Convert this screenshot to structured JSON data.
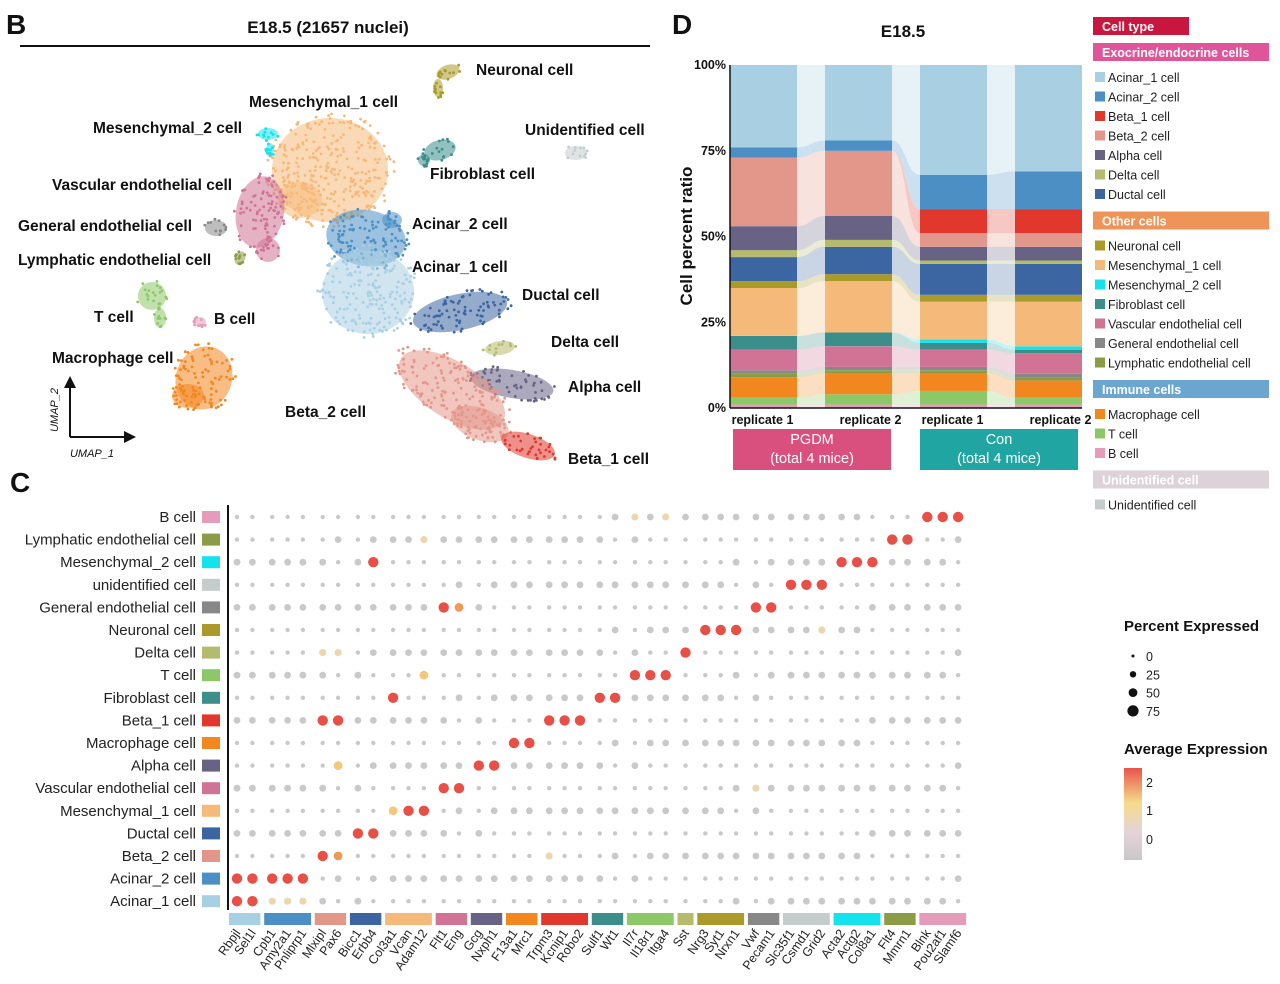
{
  "panel_labels": {
    "b": "B",
    "c": "C",
    "d": "D"
  },
  "colors": {
    "Acinar_1 cell": "#a9cfe3",
    "Acinar_2 cell": "#4b8fc4",
    "Beta_1 cell": "#e2372c",
    "Beta_2 cell": "#e3978a",
    "Alpha cell": "#686385",
    "Delta cell": "#b5bb6c",
    "Ductal cell": "#3c66a1",
    "Neuronal cell": "#a99a2a",
    "Mesenchymal_1 cell": "#f5b97a",
    "Mesenchymal_2 cell": "#14e3ee",
    "Fibroblast cell": "#3b8e8a",
    "Vascular endothelial cell": "#d07394",
    "General endothelial cell": "#888888",
    "Lymphatic endothelial cell": "#8c9b46",
    "Macrophage cell": "#f3871f",
    "T cell": "#8cc867",
    "B cell": "#e59cba",
    "unidentified cell": "#c4cccc",
    "Unidentified cell": "#c4cccc"
  },
  "chart_data": [
    {
      "panel": "B",
      "type": "scatter",
      "title": "E18.5 (21657 nuclei)",
      "xlabel": "UMAP_1",
      "ylabel": "UMAP_2",
      "clusters": [
        {
          "name": "Neuronal cell",
          "label": "Neuronal cell"
        },
        {
          "name": "Mesenchymal_1 cell",
          "label": "Mesenchymal_1 cell"
        },
        {
          "name": "Mesenchymal_2 cell",
          "label": "Mesenchymal_2 cell"
        },
        {
          "name": "Unidentified cell",
          "label": "Unidentified cell"
        },
        {
          "name": "Fibroblast cell",
          "label": "Fibroblast cell"
        },
        {
          "name": "Vascular endothelial cell",
          "label": "Vascular endothelial cell"
        },
        {
          "name": "General endothelial cell",
          "label": "General endothelial cell"
        },
        {
          "name": "Acinar_2 cell",
          "label": "Acinar_2 cell"
        },
        {
          "name": "Lymphatic endothelial cell",
          "label": "Lymphatic endothelial cell"
        },
        {
          "name": "Acinar_1 cell",
          "label": "Acinar_1 cell"
        },
        {
          "name": "Ductal cell",
          "label": "Ductal cell"
        },
        {
          "name": "T cell",
          "label": "T cell"
        },
        {
          "name": "B cell",
          "label": "B cell"
        },
        {
          "name": "Delta cell",
          "label": "Delta cell"
        },
        {
          "name": "Macrophage cell",
          "label": "Macrophage cell"
        },
        {
          "name": "Alpha cell",
          "label": "Alpha cell"
        },
        {
          "name": "Beta_2 cell",
          "label": "Beta_2 cell"
        },
        {
          "name": "Beta_1 cell",
          "label": "Beta_1 cell"
        }
      ]
    },
    {
      "panel": "C",
      "type": "dotplot",
      "rows": [
        "B cell",
        "Lymphatic endothelial cell",
        "Mesenchymal_2 cell",
        "unidentified cell",
        "General endothelial cell",
        "Neuronal cell",
        "Delta cell",
        "T cell",
        "Fibroblast cell",
        "Beta_1 cell",
        "Macrophage cell",
        "Alpha cell",
        "Vascular endothelial cell",
        "Mesenchymal_1 cell",
        "Ductal cell",
        "Beta_2 cell",
        "Acinar_2 cell",
        "Acinar_1 cell"
      ],
      "gene_groups": [
        {
          "cluster": "Acinar_1 cell",
          "genes": [
            "Rbpjl",
            "Sel1l"
          ]
        },
        {
          "cluster": "Acinar_2 cell",
          "genes": [
            "Cpb1",
            "Amy2a1",
            "Pnliprp1"
          ]
        },
        {
          "cluster": "Beta_2 cell",
          "genes": [
            "Mlxipl",
            "Pax6"
          ]
        },
        {
          "cluster": "Ductal cell",
          "genes": [
            "Bicc1",
            "Erbb4"
          ]
        },
        {
          "cluster": "Mesenchymal_1 cell",
          "genes": [
            "Col3a1",
            "Vcan",
            "Adam12"
          ]
        },
        {
          "cluster": "Vascular endothelial cell",
          "genes": [
            "Flt1",
            "Eng"
          ]
        },
        {
          "cluster": "Alpha cell",
          "genes": [
            "Gcg",
            "Nxph1"
          ]
        },
        {
          "cluster": "Macrophage cell",
          "genes": [
            "F13a1",
            "Mrc1"
          ]
        },
        {
          "cluster": "Beta_1 cell",
          "genes": [
            "Trpm3",
            "Kcnip1",
            "Robo2"
          ]
        },
        {
          "cluster": "Fibroblast cell",
          "genes": [
            "Sulf1",
            "Wt1"
          ]
        },
        {
          "cluster": "T cell",
          "genes": [
            "Il7r",
            "Il18r1",
            "Itga4"
          ]
        },
        {
          "cluster": "Delta cell",
          "genes": [
            "Sst"
          ]
        },
        {
          "cluster": "Neuronal cell",
          "genes": [
            "Nrg3",
            "Syt1",
            "Nrxn1"
          ]
        },
        {
          "cluster": "General endothelial cell",
          "genes": [
            "Vwf",
            "Pecam1"
          ]
        },
        {
          "cluster": "unidentified cell",
          "genes": [
            "Slc35f1",
            "Csmd1",
            "Grid2"
          ]
        },
        {
          "cluster": "Mesenchymal_2 cell",
          "genes": [
            "Acta2",
            "Actg2",
            "Col8a1"
          ]
        },
        {
          "cluster": "Lymphatic endothelial cell",
          "genes": [
            "Flt4",
            "Mmrn1"
          ]
        },
        {
          "cluster": "B cell",
          "genes": [
            "Blnk",
            "Pou2af1",
            "Slamf6"
          ]
        }
      ],
      "highlights": [
        {
          "row": "Acinar_1 cell",
          "gene": "Rbpjl",
          "level": 2
        },
        {
          "row": "Acinar_1 cell",
          "gene": "Sel1l",
          "level": 2
        },
        {
          "row": "Acinar_1 cell",
          "gene": "Cpb1",
          "level": 1
        },
        {
          "row": "Acinar_1 cell",
          "gene": "Amy2a1",
          "level": 1
        },
        {
          "row": "Acinar_1 cell",
          "gene": "Pnliprp1",
          "level": 1
        },
        {
          "row": "Acinar_2 cell",
          "gene": "Rbpjl",
          "level": 2
        },
        {
          "row": "Acinar_2 cell",
          "gene": "Sel1l",
          "level": 2
        },
        {
          "row": "Acinar_2 cell",
          "gene": "Cpb1",
          "level": 2
        },
        {
          "row": "Acinar_2 cell",
          "gene": "Amy2a1",
          "level": 2
        },
        {
          "row": "Acinar_2 cell",
          "gene": "Pnliprp1",
          "level": 2
        },
        {
          "row": "Beta_2 cell",
          "gene": "Mlxipl",
          "level": 2
        },
        {
          "row": "Beta_2 cell",
          "gene": "Pax6",
          "level": 1.5
        },
        {
          "row": "Beta_2 cell",
          "gene": "Trpm3",
          "level": 1
        },
        {
          "row": "Ductal cell",
          "gene": "Bicc1",
          "level": 2
        },
        {
          "row": "Ductal cell",
          "gene": "Erbb4",
          "level": 2
        },
        {
          "row": "Mesenchymal_1 cell",
          "gene": "Col3a1",
          "level": 1.3
        },
        {
          "row": "Mesenchymal_1 cell",
          "gene": "Vcan",
          "level": 2
        },
        {
          "row": "Mesenchymal_1 cell",
          "gene": "Adam12",
          "level": 2
        },
        {
          "row": "Vascular endothelial cell",
          "gene": "Flt1",
          "level": 2
        },
        {
          "row": "Vascular endothelial cell",
          "gene": "Eng",
          "level": 2
        },
        {
          "row": "Vascular endothelial cell",
          "gene": "Vwf",
          "level": 1
        },
        {
          "row": "Alpha cell",
          "gene": "Gcg",
          "level": 2
        },
        {
          "row": "Alpha cell",
          "gene": "Nxph1",
          "level": 2
        },
        {
          "row": "Alpha cell",
          "gene": "Pax6",
          "level": 1.3
        },
        {
          "row": "Macrophage cell",
          "gene": "F13a1",
          "level": 2
        },
        {
          "row": "Macrophage cell",
          "gene": "Mrc1",
          "level": 2
        },
        {
          "row": "Beta_1 cell",
          "gene": "Trpm3",
          "level": 2
        },
        {
          "row": "Beta_1 cell",
          "gene": "Kcnip1",
          "level": 2
        },
        {
          "row": "Beta_1 cell",
          "gene": "Robo2",
          "level": 2
        },
        {
          "row": "Beta_1 cell",
          "gene": "Mlxipl",
          "level": 2
        },
        {
          "row": "Beta_1 cell",
          "gene": "Pax6",
          "level": 2
        },
        {
          "row": "Fibroblast cell",
          "gene": "Sulf1",
          "level": 2
        },
        {
          "row": "Fibroblast cell",
          "gene": "Wt1",
          "level": 2
        },
        {
          "row": "Fibroblast cell",
          "gene": "Col3a1",
          "level": 2
        },
        {
          "row": "T cell",
          "gene": "Il7r",
          "level": 2
        },
        {
          "row": "T cell",
          "gene": "Il18r1",
          "level": 2
        },
        {
          "row": "T cell",
          "gene": "Itga4",
          "level": 2
        },
        {
          "row": "T cell",
          "gene": "Adam12",
          "level": 1.3
        },
        {
          "row": "Delta cell",
          "gene": "Sst",
          "level": 2
        },
        {
          "row": "Delta cell",
          "gene": "Mlxipl",
          "level": 1
        },
        {
          "row": "Delta cell",
          "gene": "Pax6",
          "level": 1
        },
        {
          "row": "Neuronal cell",
          "gene": "Nrg3",
          "level": 2
        },
        {
          "row": "Neuronal cell",
          "gene": "Syt1",
          "level": 2
        },
        {
          "row": "Neuronal cell",
          "gene": "Nrxn1",
          "level": 2
        },
        {
          "row": "Neuronal cell",
          "gene": "Grid2",
          "level": 1
        },
        {
          "row": "General endothelial cell",
          "gene": "Flt1",
          "level": 2
        },
        {
          "row": "General endothelial cell",
          "gene": "Eng",
          "level": 1.6
        },
        {
          "row": "General endothelial cell",
          "gene": "Vwf",
          "level": 2
        },
        {
          "row": "General endothelial cell",
          "gene": "Pecam1",
          "level": 2
        },
        {
          "row": "unidentified cell",
          "gene": "Slc35f1",
          "level": 2
        },
        {
          "row": "unidentified cell",
          "gene": "Csmd1",
          "level": 2
        },
        {
          "row": "unidentified cell",
          "gene": "Grid2",
          "level": 2
        },
        {
          "row": "Mesenchymal_2 cell",
          "gene": "Acta2",
          "level": 2
        },
        {
          "row": "Mesenchymal_2 cell",
          "gene": "Actg2",
          "level": 2
        },
        {
          "row": "Mesenchymal_2 cell",
          "gene": "Col8a1",
          "level": 2
        },
        {
          "row": "Mesenchymal_2 cell",
          "gene": "Erbb4",
          "level": 2
        },
        {
          "row": "Lymphatic endothelial cell",
          "gene": "Flt4",
          "level": 2
        },
        {
          "row": "Lymphatic endothelial cell",
          "gene": "Mmrn1",
          "level": 2
        },
        {
          "row": "Lymphatic endothelial cell",
          "gene": "Adam12",
          "level": 1
        },
        {
          "row": "B cell",
          "gene": "Blnk",
          "level": 2
        },
        {
          "row": "B cell",
          "gene": "Pou2af1",
          "level": 2
        },
        {
          "row": "B cell",
          "gene": "Slamf6",
          "level": 2
        },
        {
          "row": "B cell",
          "gene": "Il7r",
          "level": 1
        },
        {
          "row": "B cell",
          "gene": "Itga4",
          "level": 1
        }
      ],
      "size_legend": {
        "title": "Percent Expressed",
        "values": [
          0,
          25,
          50,
          75
        ]
      },
      "color_legend": {
        "title": "Average Expression",
        "ticks": [
          2,
          1,
          0
        ]
      }
    },
    {
      "panel": "D",
      "type": "stacked_bar",
      "title": "E18.5",
      "ylabel": "Cell percent ratio",
      "ylim": [
        0,
        100
      ],
      "yticks": [
        "0%",
        "25%",
        "50%",
        "75%",
        "100%"
      ],
      "categories": [
        "replicate 1",
        "replicate 2",
        "replicate 1",
        "replicate 2"
      ],
      "groups": [
        {
          "label": "PGDM",
          "sublabel": "(total 4 mice)",
          "color": "#d9507f"
        },
        {
          "label": "Con",
          "sublabel": "(total 4 mice)",
          "color": "#21a5a2"
        }
      ],
      "series_order_bottom_to_top": [
        "B cell",
        "T cell",
        "Macrophage cell",
        "Lymphatic endothelial cell",
        "General endothelial cell",
        "Vascular endothelial cell",
        "Fibroblast cell",
        "Mesenchymal_2 cell",
        "Mesenchymal_1 cell",
        "Neuronal cell",
        "Ductal cell",
        "Delta cell",
        "Alpha cell",
        "Beta_2 cell",
        "Beta_1 cell",
        "Acinar_2 cell",
        "Acinar_1 cell"
      ],
      "series": [
        {
          "name": "B cell",
          "values": [
            1,
            1,
            1,
            1
          ]
        },
        {
          "name": "T cell",
          "values": [
            2,
            3,
            4,
            2
          ]
        },
        {
          "name": "Macrophage cell",
          "values": [
            6,
            6,
            5,
            5
          ]
        },
        {
          "name": "Lymphatic endothelial cell",
          "values": [
            1,
            1,
            1,
            1
          ]
        },
        {
          "name": "General endothelial cell",
          "values": [
            1,
            1,
            1,
            1
          ]
        },
        {
          "name": "Vascular endothelial cell",
          "values": [
            6,
            6,
            5,
            6
          ]
        },
        {
          "name": "Fibroblast cell",
          "values": [
            4,
            4,
            2,
            1
          ]
        },
        {
          "name": "Mesenchymal_2 cell",
          "values": [
            0,
            0,
            1,
            1
          ]
        },
        {
          "name": "Mesenchymal_1 cell",
          "values": [
            14,
            15,
            11,
            13
          ]
        },
        {
          "name": "Neuronal cell",
          "values": [
            2,
            2,
            2,
            2
          ]
        },
        {
          "name": "Ductal cell",
          "values": [
            7,
            8,
            9,
            9
          ]
        },
        {
          "name": "Delta cell",
          "values": [
            2,
            2,
            1,
            1
          ]
        },
        {
          "name": "Alpha cell",
          "values": [
            7,
            7,
            4,
            4
          ]
        },
        {
          "name": "Beta_2 cell",
          "values": [
            20,
            19,
            4,
            4
          ]
        },
        {
          "name": "Beta_1 cell",
          "values": [
            0,
            0,
            7,
            7
          ]
        },
        {
          "name": "Acinar_2 cell",
          "values": [
            3,
            3,
            10,
            11
          ]
        },
        {
          "name": "Acinar_1 cell",
          "values": [
            24,
            22,
            32,
            31
          ]
        }
      ],
      "legend": {
        "title": "Cell type",
        "sections": [
          {
            "header": "Exocrine/endocrine cells",
            "color": "#e0559a",
            "items": [
              "Acinar_1 cell",
              "Acinar_2 cell",
              "Beta_1 cell",
              "Beta_2 cell",
              "Alpha cell",
              "Delta cell",
              "Ductal cell"
            ]
          },
          {
            "header": "Other cells",
            "color": "#ef9458",
            "items": [
              "Neuronal cell",
              "Mesenchymal_1  cell",
              "Mesenchymal_2 cell",
              "Fibroblast cell",
              "Vascular endothelial cell",
              "General endothelial cell",
              "Lymphatic endothelial cell"
            ]
          },
          {
            "header": "Immune cells",
            "color": "#6aa6cf",
            "items": [
              "Macrophage cell",
              "T cell",
              "B cell"
            ]
          },
          {
            "header": "Unidentified cell",
            "color": "#ddd2d8",
            "items": [
              "Unidentified cell"
            ]
          }
        ]
      }
    }
  ]
}
